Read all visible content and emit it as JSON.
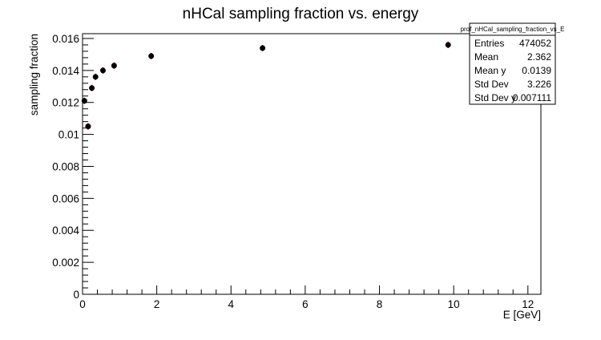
{
  "chart_data": {
    "type": "scatter",
    "title": "nHCal sampling fraction vs. energy",
    "xlabel": "E [GeV]",
    "ylabel": "sampling fraction",
    "xlim": [
      0,
      12.35
    ],
    "ylim": [
      0,
      0.0163
    ],
    "x_ticks": [
      0,
      2,
      4,
      6,
      8,
      10,
      12
    ],
    "x_tick_labels": [
      "0",
      "2",
      "4",
      "6",
      "8",
      "10",
      "12"
    ],
    "y_ticks": [
      0,
      0.002,
      0.004,
      0.006,
      0.008,
      0.01,
      0.012,
      0.014,
      0.016
    ],
    "y_tick_labels": [
      "0",
      "0.002",
      "0.004",
      "0.006",
      "0.008",
      "0.01",
      "0.012",
      "0.014",
      "0.016"
    ],
    "grid": false,
    "series": [
      {
        "color": "#000000",
        "x": [
          0.05,
          0.15,
          0.25,
          0.35,
          0.55,
          0.85,
          1.85,
          4.85,
          9.85
        ],
        "y": [
          0.0121,
          0.0105,
          0.0129,
          0.0136,
          0.014,
          0.0143,
          0.0149,
          0.0154,
          0.0156
        ]
      }
    ],
    "stats_box": {
      "title": "prof_nHCal_sampling_fraction_vs_E",
      "position": "top-right",
      "rows": [
        {
          "label": "Entries",
          "value": "474052"
        },
        {
          "label": "Mean",
          "value": "2.362"
        },
        {
          "label": "Mean y",
          "value": "0.0139"
        },
        {
          "label": "Std Dev",
          "value": "3.226"
        },
        {
          "label": "Std Dev y",
          "value": "0.007111"
        }
      ]
    }
  }
}
